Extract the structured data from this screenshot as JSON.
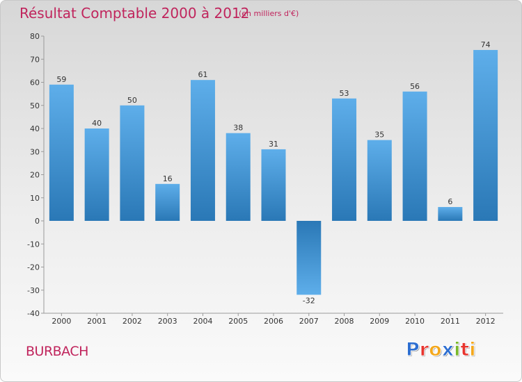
{
  "title": "Résultat Comptable 2000 à 2012",
  "subtitle": "(en milliers d'€)",
  "commune": "BURBACH",
  "logo": {
    "text": "Proxiti",
    "letters": [
      {
        "ch": "P",
        "color": "#2e6fd1"
      },
      {
        "ch": "r",
        "color": "#e8342e"
      },
      {
        "ch": "o",
        "color": "#f4a81c"
      },
      {
        "ch": "x",
        "color": "#2e6fd1"
      },
      {
        "ch": "i",
        "color": "#79b82a"
      },
      {
        "ch": "t",
        "color": "#e8342e"
      },
      {
        "ch": "i",
        "color": "#f4a81c"
      }
    ]
  },
  "colors": {
    "bar_dark": "#2a78b6",
    "bar_light": "#5eaeea",
    "title": "#c0245c"
  },
  "chart_data": {
    "type": "bar",
    "title": "Résultat Comptable 2000 à 2012",
    "ylabel": "(en milliers d'€)",
    "xlabel": "",
    "categories": [
      "2000",
      "2001",
      "2002",
      "2003",
      "2004",
      "2005",
      "2006",
      "2007",
      "2008",
      "2009",
      "2010",
      "2011",
      "2012"
    ],
    "values": [
      59,
      40,
      50,
      16,
      61,
      38,
      31,
      -32,
      53,
      35,
      56,
      6,
      74
    ],
    "ylim": [
      -40,
      80
    ],
    "yticks": [
      80,
      70,
      60,
      50,
      40,
      30,
      20,
      10,
      0,
      -10,
      -20,
      -30,
      -40
    ],
    "grid": false
  }
}
